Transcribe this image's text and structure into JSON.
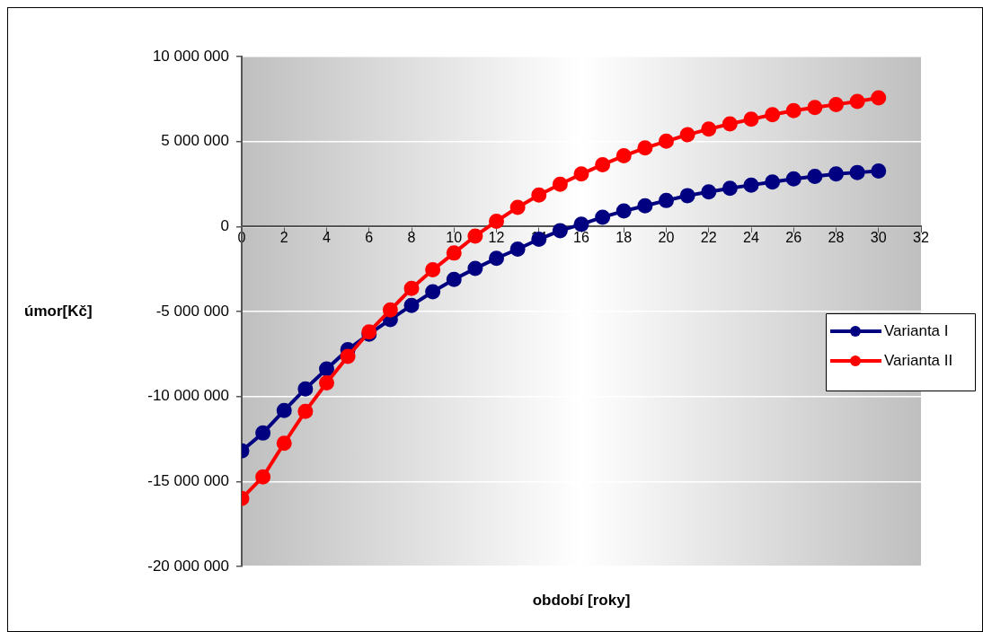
{
  "chart_data": {
    "type": "line",
    "xlabel": "období [roky]",
    "ylabel": "úmor[Kč]",
    "x": [
      0,
      1,
      2,
      3,
      4,
      5,
      6,
      7,
      8,
      9,
      10,
      11,
      12,
      13,
      14,
      15,
      16,
      17,
      18,
      19,
      20,
      21,
      22,
      23,
      24,
      25,
      26,
      27,
      28,
      29,
      30
    ],
    "series": [
      {
        "name": "Varianta I",
        "color": "#000080",
        "values": [
          -13200000.0,
          -12150000.0,
          -10820000.0,
          -9550000.0,
          -8380000.0,
          -7240000.0,
          -6330000.0,
          -5470000.0,
          -4640000.0,
          -3840000.0,
          -3110000.0,
          -2470000.0,
          -1870000.0,
          -1330000.0,
          -750000.0,
          -240000.0,
          130000.0,
          550000.0,
          910000.0,
          1220000.0,
          1530000.0,
          1820000.0,
          2040000.0,
          2250000.0,
          2440000.0,
          2620000.0,
          2800000.0,
          2950000.0,
          3090000.0,
          3180000.0,
          3270000.0
        ]
      },
      {
        "name": "Varianta II",
        "color": "#ff0000",
        "values": [
          -16000000.0,
          -14730000.0,
          -12750000.0,
          -10870000.0,
          -9200000.0,
          -7640000.0,
          -6200000.0,
          -4910000.0,
          -3640000.0,
          -2550000.0,
          -1560000.0,
          -560000.0,
          310000.0,
          1130000.0,
          1850000.0,
          2490000.0,
          3090000.0,
          3640000.0,
          4160000.0,
          4620000.0,
          5020000.0,
          5400000.0,
          5730000.0,
          6040000.0,
          6310000.0,
          6580000.0,
          6820000.0,
          7000000.0,
          7180000.0,
          7360000.0,
          7570000.0
        ]
      }
    ],
    "xlim": [
      0,
      32
    ],
    "xticks": [
      0,
      2,
      4,
      6,
      8,
      10,
      12,
      14,
      16,
      18,
      20,
      22,
      24,
      26,
      28,
      30,
      32
    ],
    "ylim": [
      -20000000,
      10000000
    ],
    "yticks": [
      {
        "value": -20000000,
        "label": "-20 000 000"
      },
      {
        "value": -15000000,
        "label": "-15 000 000"
      },
      {
        "value": -10000000,
        "label": "-10 000 000"
      },
      {
        "value": -5000000,
        "label": "-5 000 000"
      },
      {
        "value": 0,
        "label": "0"
      },
      {
        "value": 5000000,
        "label": "5 000 000"
      },
      {
        "value": 10000000,
        "label": "10 000 000"
      }
    ],
    "grid": "y",
    "legend": "right",
    "marker": "circle",
    "line_style": "solid"
  }
}
